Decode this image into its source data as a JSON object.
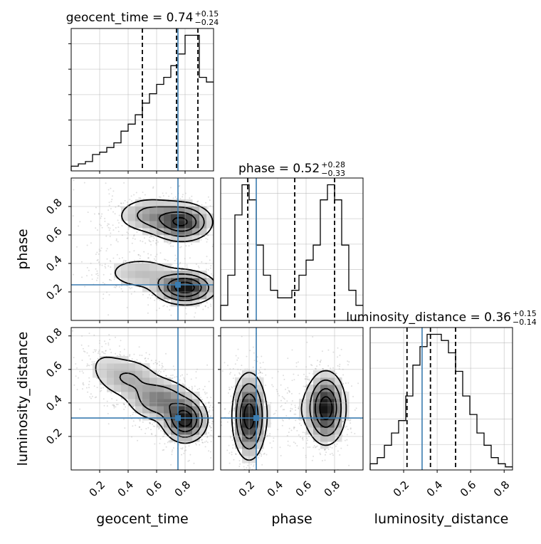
{
  "chart_data": {
    "type": "corner",
    "parameters": [
      "geocent_time",
      "phase",
      "luminosity_distance"
    ],
    "truth": {
      "geocent_time": 0.75,
      "phase": 0.25,
      "luminosity_distance": 0.31
    },
    "ranges": {
      "geocent_time": [
        0.0,
        1.0
      ],
      "phase": [
        0.0,
        1.0
      ],
      "luminosity_distance": [
        0.0,
        0.85
      ]
    },
    "ticks": {
      "geocent_time": [
        0.2,
        0.4,
        0.6,
        0.8
      ],
      "phase": [
        0.2,
        0.4,
        0.6,
        0.8
      ],
      "luminosity_distance": [
        0.2,
        0.4,
        0.6,
        0.8
      ]
    },
    "axis_labels": {
      "geocent_time": "geocent_time",
      "phase": "phase",
      "luminosity_distance": "luminosity_distance"
    },
    "diagonal_titles": [
      {
        "param": "geocent_time",
        "text": "geocent_time = 0.74",
        "sup": "+0.15",
        "sub": "−0.24"
      },
      {
        "param": "phase",
        "text": "phase = 0.52",
        "sup": "+0.28",
        "sub": "−0.33"
      },
      {
        "param": "luminosity_distance",
        "text": "luminosity_distance = 0.36",
        "sup": "+0.15",
        "sub": "−0.14"
      }
    ],
    "quantiles": {
      "geocent_time": [
        0.5,
        0.74,
        0.89
      ],
      "phase": [
        0.19,
        0.52,
        0.8
      ],
      "luminosity_distance": [
        0.22,
        0.36,
        0.51
      ]
    },
    "histograms": {
      "geocent_time": [
        2,
        3,
        4,
        7,
        8,
        10,
        12,
        17,
        20,
        24,
        29,
        33,
        37,
        40,
        45,
        50,
        58,
        58,
        40,
        38
      ],
      "phase": [
        1,
        3,
        7,
        9,
        8,
        5,
        3,
        2,
        1.5,
        1.5,
        2,
        3,
        4,
        5,
        8,
        9,
        8,
        5,
        2,
        1
      ],
      "luminosity_distance": [
        1,
        2,
        4,
        6,
        8,
        12,
        17,
        20,
        22,
        22,
        21,
        19,
        16,
        12,
        9,
        6,
        4,
        2,
        1,
        0.5
      ]
    },
    "density_blobs": {
      "phase_vs_geocent_time": [
        {
          "x": 0.78,
          "y": 0.69,
          "w": 0.06,
          "sx": 0.11,
          "sy": 0.07
        },
        {
          "x": 0.55,
          "y": 0.74,
          "w": 0.03,
          "sx": 0.12,
          "sy": 0.07
        },
        {
          "x": 0.8,
          "y": 0.23,
          "w": 0.06,
          "sx": 0.11,
          "sy": 0.06
        },
        {
          "x": 0.5,
          "y": 0.33,
          "w": 0.025,
          "sx": 0.15,
          "sy": 0.07
        },
        {
          "x": 0.25,
          "y": 0.6,
          "w": 0.01,
          "sx": 0.12,
          "sy": 0.18
        }
      ],
      "luminosity_distance_vs_geocent_time": [
        {
          "x": 0.8,
          "y": 0.3,
          "w": 0.06,
          "sx": 0.08,
          "sy": 0.07
        },
        {
          "x": 0.62,
          "y": 0.42,
          "w": 0.05,
          "sx": 0.12,
          "sy": 0.07
        },
        {
          "x": 0.4,
          "y": 0.55,
          "w": 0.03,
          "sx": 0.12,
          "sy": 0.07
        },
        {
          "x": 0.22,
          "y": 0.64,
          "w": 0.01,
          "sx": 0.1,
          "sy": 0.08
        }
      ],
      "luminosity_distance_vs_phase": [
        {
          "x": 0.2,
          "y": 0.32,
          "w": 0.05,
          "sx": 0.06,
          "sy": 0.13
        },
        {
          "x": 0.74,
          "y": 0.37,
          "w": 0.05,
          "sx": 0.07,
          "sy": 0.11
        },
        {
          "x": 0.5,
          "y": 0.36,
          "w": 0.008,
          "sx": 0.1,
          "sy": 0.12
        }
      ]
    }
  }
}
